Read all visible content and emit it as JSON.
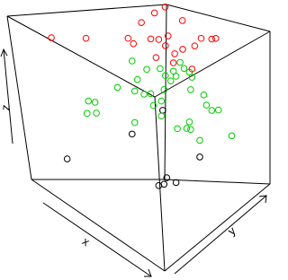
{
  "chart_data": {
    "type": "scatter3d",
    "xlabel": "x",
    "ylabel": "y",
    "zlabel": "z",
    "xlim": [
      0,
      1
    ],
    "ylim": [
      0,
      1
    ],
    "zlim": [
      0,
      1
    ],
    "series": [
      {
        "color": "#000000",
        "x": [
          0.11,
          0.36,
          0.59,
          0.71,
          0.62,
          0.69,
          0.6,
          0.56
        ],
        "y": [
          0.2,
          0.5,
          0.5,
          0.7,
          0.5,
          0.5,
          0.5,
          0.5
        ],
        "z": [
          0.08,
          0.21,
          0.48,
          0.16,
          0.09,
          0.1,
          0.04,
          0.01
        ]
      },
      {
        "color": "#00cd00",
        "x": [
          0.36,
          0.25,
          0.19,
          0.24,
          0.18,
          0.25,
          0.38,
          0.45,
          0.5,
          0.47,
          0.4,
          0.57,
          0.6,
          0.67,
          0.69,
          0.72,
          0.75,
          0.79,
          0.81,
          0.8,
          0.58,
          0.52,
          0.58,
          0.74,
          0.76,
          0.85,
          0.8,
          0.79,
          0.77,
          0.8,
          0.71,
          0.95,
          0.7,
          0.38,
          0.61,
          0.65
        ],
        "y": [
          0.5,
          0.5,
          0.3,
          0.3,
          0.3,
          0.3,
          0.5,
          0.5,
          0.5,
          0.5,
          0.5,
          0.5,
          0.5,
          0.5,
          0.5,
          0.5,
          0.5,
          0.5,
          0.5,
          0.5,
          0.5,
          0.5,
          0.5,
          0.7,
          0.7,
          0.7,
          0.7,
          0.5,
          0.5,
          0.5,
          0.7,
          0.7,
          0.5,
          0.5,
          0.5,
          0.5
        ],
        "z": [
          0.65,
          0.43,
          0.42,
          0.44,
          0.34,
          0.38,
          0.48,
          0.5,
          0.53,
          0.66,
          0.56,
          0.72,
          0.61,
          0.76,
          0.74,
          0.84,
          0.82,
          0.82,
          0.8,
          0.72,
          0.53,
          0.47,
          0.44,
          0.55,
          0.5,
          0.52,
          0.49,
          0.52,
          0.47,
          0.48,
          0.26,
          0.42,
          0.43,
          0.29,
          0.7,
          0.69
        ]
      },
      {
        "color": "#ff0000",
        "x": [
          0.07,
          0.33,
          0.33,
          0.37,
          0.43,
          0.45,
          0.37,
          0.58,
          0.5,
          0.56,
          0.63,
          0.61,
          0.68,
          0.74,
          0.83,
          0.72,
          0.8,
          0.83,
          0.67,
          0.54,
          0.81
        ],
        "y": [
          0.1,
          0.1,
          0.5,
          0.5,
          0.5,
          0.7,
          0.7,
          0.7,
          0.5,
          0.5,
          0.5,
          0.5,
          0.5,
          0.5,
          0.5,
          0.7,
          0.7,
          0.7,
          0.5,
          0.5,
          0.5
        ],
        "z": [
          0.84,
          0.98,
          0.77,
          0.76,
          0.92,
          0.92,
          0.84,
          0.91,
          0.86,
          0.89,
          0.95,
          0.88,
          0.87,
          0.93,
          1.0,
          0.88,
          0.92,
          0.94,
          0.81,
          0.77,
          0.85
        ]
      }
    ]
  }
}
